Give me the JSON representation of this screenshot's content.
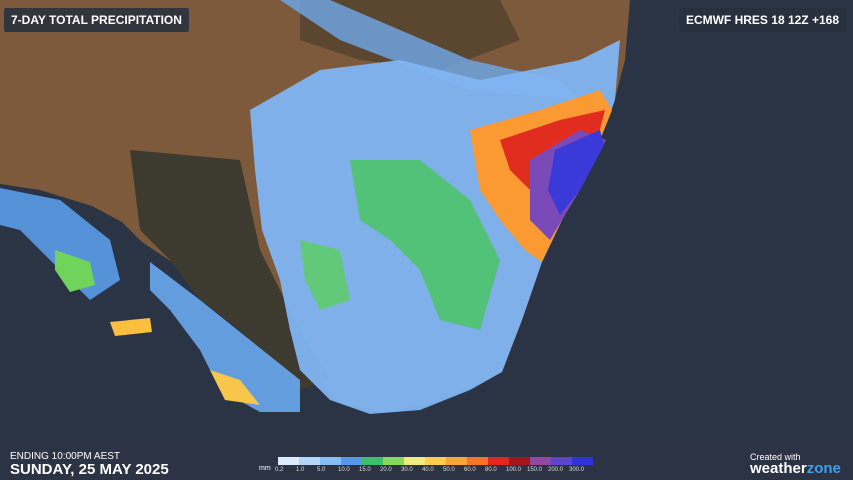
{
  "header": {
    "title": "7-DAY TOTAL PRECIPITATION",
    "model": "ECMWF HRES 18 12Z +168"
  },
  "footer": {
    "ending": "ENDING 10:00PM AEST",
    "date": "SUNDAY, 25 MAY 2025",
    "credit": "Created with",
    "brand": "weather",
    "brand_accent": "zone"
  },
  "legend": {
    "unit": "mm",
    "items": [
      {
        "label": "0.2",
        "color": "#dcecff"
      },
      {
        "label": "1.0",
        "color": "#b4d6fb"
      },
      {
        "label": "5.0",
        "color": "#86bdf5"
      },
      {
        "label": "10.0",
        "color": "#5799e8"
      },
      {
        "label": "15.0",
        "color": "#3fbf6c"
      },
      {
        "label": "20.0",
        "color": "#86d95a"
      },
      {
        "label": "30.0",
        "color": "#eeec7a"
      },
      {
        "label": "40.0",
        "color": "#fbcf4c"
      },
      {
        "label": "50.0",
        "color": "#fca534"
      },
      {
        "label": "60.0",
        "color": "#f97423"
      },
      {
        "label": "80.0",
        "color": "#e2261f"
      },
      {
        "label": "100.0",
        "color": "#a5131c"
      },
      {
        "label": "150.0",
        "color": "#8d4aa0"
      },
      {
        "label": "200.0",
        "color": "#5a45cf"
      },
      {
        "label": "300.0",
        "color": "#2f31dc"
      }
    ]
  }
}
